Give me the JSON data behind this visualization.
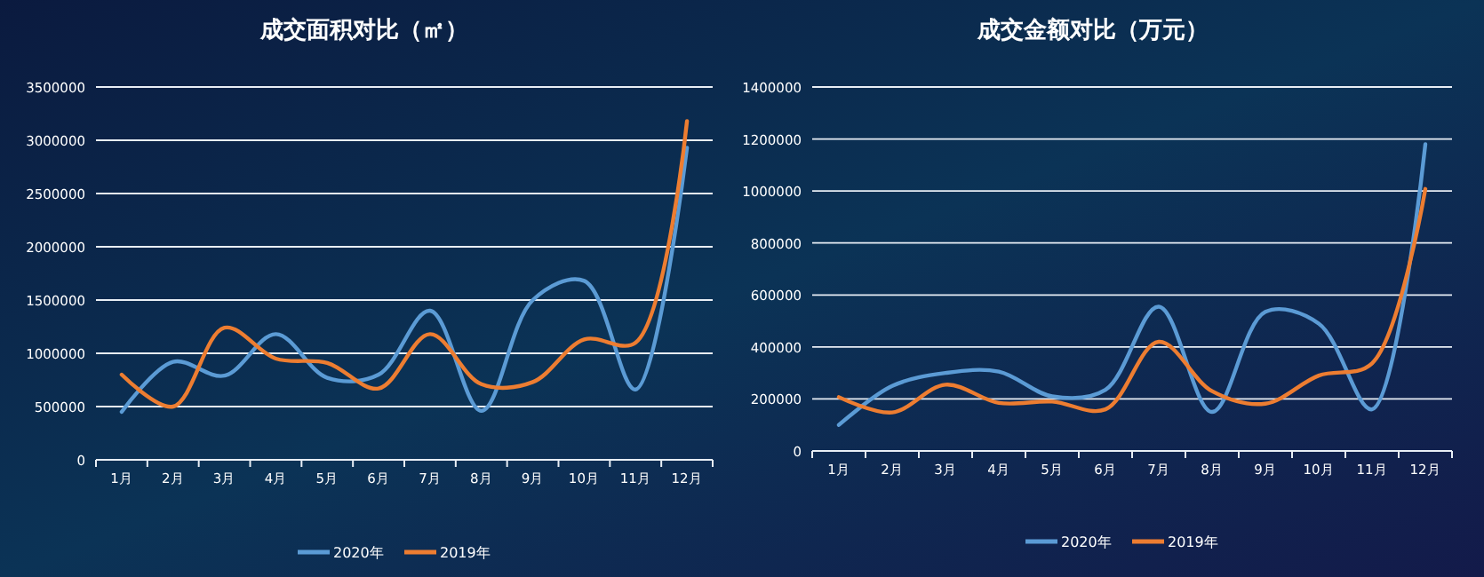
{
  "chart_data": [
    {
      "type": "line",
      "title": "成交面积对比（㎡）",
      "categories": [
        "1月",
        "2月",
        "3月",
        "4月",
        "5月",
        "6月",
        "7月",
        "8月",
        "9月",
        "10月",
        "11月",
        "12月"
      ],
      "series": [
        {
          "name": "2020年",
          "color": "#5b9bd5",
          "values": [
            450000,
            920000,
            790000,
            1180000,
            770000,
            800000,
            1400000,
            460000,
            1500000,
            1680000,
            660000,
            2930000
          ]
        },
        {
          "name": "2019年",
          "color": "#ed7d31",
          "values": [
            800000,
            500000,
            1240000,
            950000,
            910000,
            670000,
            1180000,
            710000,
            730000,
            1130000,
            1100000,
            3180000
          ]
        }
      ],
      "ylim": [
        0,
        3500000
      ],
      "yticks": [
        0,
        500000,
        1000000,
        1500000,
        2000000,
        2500000,
        3000000,
        3500000
      ],
      "grid": "y",
      "legend": "bottom",
      "marker": "none",
      "line_style": "solid"
    },
    {
      "type": "line",
      "title": "成交金额对比（万元）",
      "categories": [
        "1月",
        "2月",
        "3月",
        "4月",
        "5月",
        "6月",
        "7月",
        "8月",
        "9月",
        "10月",
        "11月",
        "12月"
      ],
      "series": [
        {
          "name": "2020年",
          "color": "#5b9bd5",
          "values": [
            100000,
            250000,
            300000,
            305000,
            210000,
            235000,
            555000,
            150000,
            535000,
            490000,
            160000,
            1180000
          ]
        },
        {
          "name": "2019年",
          "color": "#ed7d31",
          "values": [
            207000,
            148000,
            255000,
            185000,
            190000,
            160000,
            420000,
            230000,
            182000,
            290000,
            337000,
            1008000
          ]
        }
      ],
      "ylim": [
        0,
        1400000
      ],
      "yticks": [
        0,
        200000,
        400000,
        600000,
        800000,
        1000000,
        1200000,
        1400000
      ],
      "grid": "y",
      "legend": "bottom",
      "marker": "none",
      "line_style": "solid"
    }
  ]
}
